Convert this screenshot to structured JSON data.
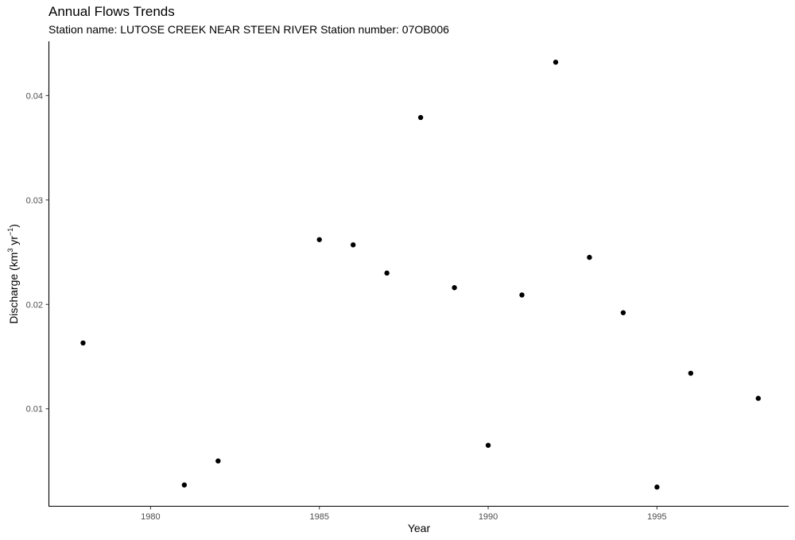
{
  "chart_data": {
    "type": "scatter",
    "title": "Annual Flows Trends",
    "subtitle": "Station name: LUTOSE CREEK NEAR STEEN RIVER Station number: 07OB006",
    "xlabel": "Year",
    "ylabel": {
      "main": "Discharge (km",
      "sup1": "3",
      "mid": " yr",
      "sup2": "−1",
      "end": ")"
    },
    "xlim": [
      1977,
      1998.9
    ],
    "ylim": [
      0.0007,
      0.0452
    ],
    "xticks": [
      1980,
      1985,
      1990,
      1995
    ],
    "yticks": [
      0.01,
      0.02,
      0.03,
      0.04
    ],
    "xtick_labels": [
      "1980",
      "1985",
      "1990",
      "1995"
    ],
    "ytick_labels": [
      "0.01",
      "0.02",
      "0.03",
      "0.04"
    ],
    "grid": false,
    "point_color": "#000000",
    "x": [
      1978,
      1981,
      1982,
      1985,
      1986,
      1987,
      1988,
      1989,
      1990,
      1991,
      1992,
      1993,
      1994,
      1995,
      1996,
      1998
    ],
    "y": [
      0.0163,
      0.0027,
      0.005,
      0.0262,
      0.0257,
      0.023,
      0.0379,
      0.0216,
      0.0065,
      0.0209,
      0.0432,
      0.0245,
      0.0192,
      0.0025,
      0.0134,
      0.011
    ]
  }
}
